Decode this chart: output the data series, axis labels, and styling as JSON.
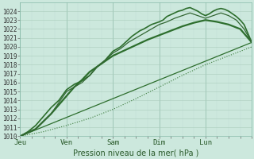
{
  "bg_color": "#cce8dd",
  "grid_color_major": "#aaccbb",
  "grid_color_minor": "#c0ddd4",
  "ylim": [
    1010,
    1025
  ],
  "yticks": [
    1010,
    1011,
    1012,
    1013,
    1014,
    1015,
    1016,
    1017,
    1018,
    1019,
    1020,
    1021,
    1022,
    1023,
    1024
  ],
  "xlabel": "Pression niveau de la mer( hPa )",
  "xtick_labels": [
    "Jeu",
    "Ven",
    "Sam",
    "Dim",
    "Lun"
  ],
  "xtick_positions": [
    0,
    24,
    48,
    72,
    96
  ],
  "total_hours": 120,
  "lines": [
    {
      "x": [
        0,
        120
      ],
      "y": [
        1010.0,
        1020.5
      ],
      "style": "solid",
      "lw": 0.9,
      "color": "#2d6e2d"
    },
    {
      "x": [
        0,
        12,
        24,
        36,
        48,
        60,
        72,
        84,
        96,
        108,
        120
      ],
      "y": [
        1010.0,
        1010.5,
        1011.2,
        1012.0,
        1013.0,
        1014.2,
        1015.5,
        1016.8,
        1018.0,
        1019.0,
        1020.0
      ],
      "style": "dotted",
      "lw": 0.8,
      "color": "#3a7a3a"
    },
    {
      "x": [
        0,
        8,
        16,
        20,
        24,
        28,
        32,
        36,
        40,
        44,
        48,
        54,
        60,
        66,
        72,
        78,
        84,
        90,
        96,
        102,
        108,
        114,
        120
      ],
      "y": [
        1010.0,
        1010.8,
        1012.5,
        1013.5,
        1014.5,
        1015.5,
        1016.3,
        1017.2,
        1017.8,
        1018.4,
        1019.0,
        1019.6,
        1020.2,
        1020.8,
        1021.3,
        1021.8,
        1022.3,
        1022.7,
        1023.0,
        1022.8,
        1022.5,
        1022.0,
        1020.5
      ],
      "style": "solid",
      "lw": 1.6,
      "color": "#2d6e2d"
    },
    {
      "x": [
        0,
        4,
        8,
        12,
        16,
        20,
        24,
        26,
        28,
        30,
        32,
        36,
        40,
        44,
        48,
        52,
        56,
        58,
        60,
        62,
        64,
        68,
        72,
        74,
        76,
        78,
        80,
        82,
        84,
        86,
        88,
        90,
        92,
        94,
        96,
        98,
        100,
        102,
        104,
        106,
        108,
        110,
        112,
        114,
        116,
        118,
        120
      ],
      "y": [
        1010.0,
        1010.5,
        1011.2,
        1012.2,
        1013.2,
        1014.0,
        1015.2,
        1015.5,
        1015.8,
        1016.0,
        1016.2,
        1016.8,
        1017.8,
        1018.5,
        1019.5,
        1020.0,
        1020.8,
        1021.2,
        1021.5,
        1021.8,
        1022.0,
        1022.5,
        1022.8,
        1023.0,
        1023.4,
        1023.6,
        1023.8,
        1024.0,
        1024.1,
        1024.3,
        1024.4,
        1024.2,
        1024.0,
        1023.7,
        1023.5,
        1023.7,
        1024.0,
        1024.2,
        1024.3,
        1024.2,
        1024.0,
        1023.7,
        1023.4,
        1023.0,
        1022.5,
        1021.5,
        1020.5
      ],
      "style": "solid",
      "lw": 1.2,
      "color": "#2d6e2d"
    },
    {
      "x": [
        0,
        8,
        16,
        24,
        28,
        32,
        36,
        40,
        44,
        48,
        52,
        56,
        60,
        64,
        68,
        72,
        76,
        80,
        84,
        88,
        92,
        96,
        100,
        104,
        108,
        112,
        116,
        120
      ],
      "y": [
        1010.0,
        1010.8,
        1012.5,
        1015.0,
        1015.5,
        1016.0,
        1016.8,
        1017.8,
        1018.5,
        1019.3,
        1019.8,
        1020.5,
        1021.0,
        1021.5,
        1022.0,
        1022.5,
        1022.8,
        1023.2,
        1023.5,
        1023.8,
        1023.5,
        1023.2,
        1023.5,
        1023.8,
        1023.5,
        1023.0,
        1022.0,
        1020.5
      ],
      "style": "solid",
      "lw": 0.9,
      "color": "#336633"
    }
  ]
}
